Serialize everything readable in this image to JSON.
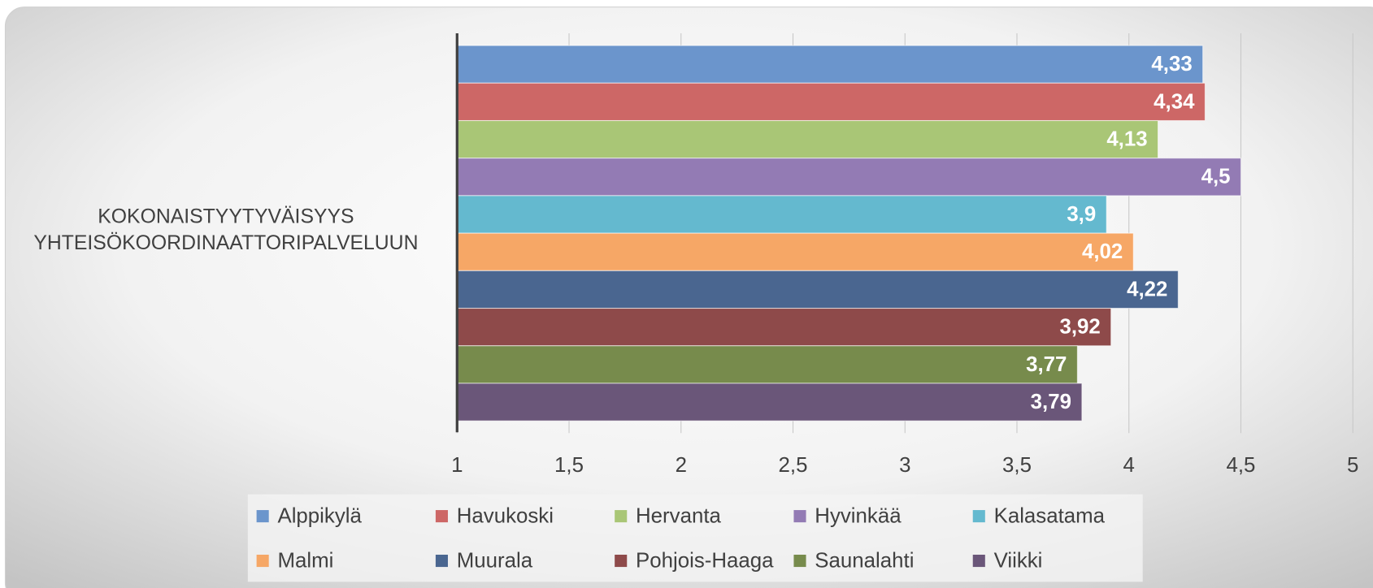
{
  "chart_data": {
    "type": "hbar",
    "categories": [
      "KOKONAISTYYTYVÄISYYS YHTEISÖKOORDINAATTORIPALVELUUN"
    ],
    "series": [
      {
        "name": "Alppikylä",
        "color": "#6b95cc",
        "values": [
          4.33
        ],
        "value_labels": [
          "4,33"
        ]
      },
      {
        "name": "Havukoski",
        "color": "#cd6766",
        "values": [
          4.34
        ],
        "value_labels": [
          "4,34"
        ]
      },
      {
        "name": "Hervanta",
        "color": "#a9c676",
        "values": [
          4.13
        ],
        "value_labels": [
          "4,13"
        ]
      },
      {
        "name": "Hyvinkää",
        "color": "#937bb4",
        "values": [
          4.5
        ],
        "value_labels": [
          "4,5"
        ]
      },
      {
        "name": "Kalasatama",
        "color": "#64b9cf",
        "values": [
          3.9
        ],
        "value_labels": [
          "3,9"
        ]
      },
      {
        "name": "Malmi",
        "color": "#f6a766",
        "values": [
          4.02
        ],
        "value_labels": [
          "4,02"
        ]
      },
      {
        "name": "Muurala",
        "color": "#4a6690",
        "values": [
          4.22
        ],
        "value_labels": [
          "4,22"
        ]
      },
      {
        "name": "Pohjois-Haaga",
        "color": "#8e4a4a",
        "values": [
          3.92
        ],
        "value_labels": [
          "3,92"
        ]
      },
      {
        "name": "Saunalahti",
        "color": "#778b4c",
        "values": [
          3.77
        ],
        "value_labels": [
          "3,77"
        ]
      },
      {
        "name": "Viikki",
        "color": "#6a5679",
        "values": [
          3.79
        ],
        "value_labels": [
          "3,79"
        ]
      }
    ],
    "xlim": [
      1,
      5
    ],
    "xticks": [
      1,
      {
        "value": 1.5,
        "label": "1,5"
      },
      2,
      {
        "value": 2.5,
        "label": "2,5"
      },
      3,
      {
        "value": 3.5,
        "label": "3,5"
      },
      4,
      {
        "value": 4.5,
        "label": "4,5"
      },
      5
    ],
    "grid": true,
    "legend": "bottom"
  }
}
